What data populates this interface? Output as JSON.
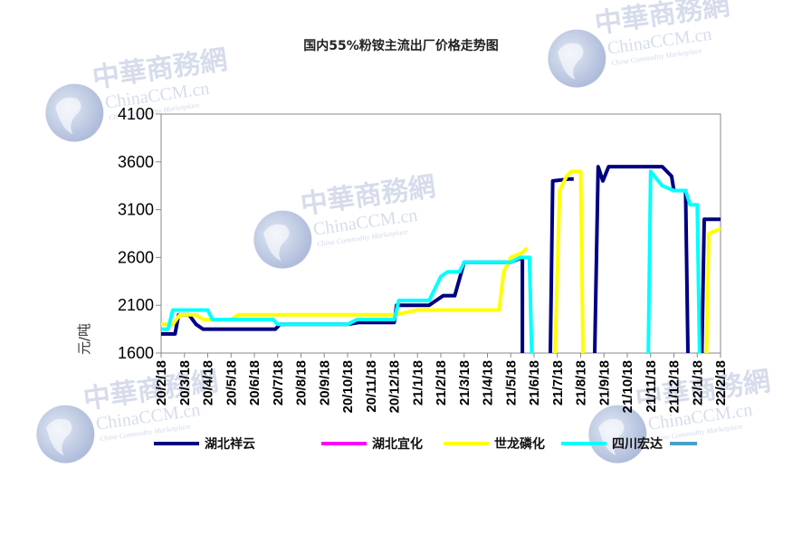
{
  "chart_data": {
    "type": "line",
    "title": "国内55%粉铵主流出厂价格走势图",
    "ylabel": "元/吨",
    "ylim": [
      1600,
      4100
    ],
    "yticks": [
      1600,
      2100,
      2600,
      3100,
      3600,
      4100
    ],
    "x_ticks": [
      "20/2/18",
      "20/3/18",
      "20/4/18",
      "20/5/18",
      "20/6/18",
      "20/7/18",
      "20/8/18",
      "20/9/18",
      "20/10/18",
      "20/11/18",
      "20/12/18",
      "21/1/18",
      "21/2/18",
      "21/3/18",
      "21/4/18",
      "21/5/18",
      "21/6/18",
      "21/7/18",
      "21/8/18",
      "21/9/18",
      "21/10/18",
      "21/11/18",
      "21/12/18",
      "22/1/18",
      "22/2/18"
    ],
    "x_unit": "month index (0 = 20/2/18, 24 = 22/2/18)",
    "grid": false,
    "legend_position": "bottom",
    "series": [
      {
        "name": "湖北祥云",
        "color": "#000080",
        "width": 4,
        "points": [
          [
            0,
            1800
          ],
          [
            0.6,
            1800
          ],
          [
            0.75,
            2000
          ],
          [
            1.2,
            2000
          ],
          [
            1.5,
            1900
          ],
          [
            1.8,
            1850
          ],
          [
            3,
            1850
          ],
          [
            4,
            1850
          ],
          [
            4.9,
            1850
          ],
          [
            5.1,
            1900
          ],
          [
            6,
            1900
          ],
          [
            7,
            1900
          ],
          [
            8,
            1900
          ],
          [
            8.5,
            1920
          ],
          [
            9,
            1920
          ],
          [
            10,
            1920
          ],
          [
            10.1,
            2100
          ],
          [
            11.5,
            2100
          ],
          [
            12.1,
            2200
          ],
          [
            12.6,
            2200
          ],
          [
            13,
            2550
          ],
          [
            14,
            2550
          ],
          [
            15,
            2550
          ],
          [
            15.5,
            2600
          ],
          [
            15.5,
            1600
          ],
          null,
          [
            16.7,
            1600
          ],
          [
            16.8,
            3400
          ],
          [
            17.5,
            3420
          ],
          [
            17.7,
            3420
          ],
          null,
          [
            18.6,
            1600
          ],
          [
            18.75,
            3550
          ],
          [
            18.95,
            3400
          ],
          [
            19.2,
            3550
          ],
          [
            20,
            3550
          ],
          [
            21,
            3550
          ],
          [
            21.5,
            3550
          ],
          [
            21.9,
            3450
          ],
          [
            22,
            3300
          ],
          [
            22.5,
            3300
          ],
          [
            22.6,
            1600
          ],
          null,
          [
            23.2,
            1600
          ],
          [
            23.3,
            3000
          ],
          [
            24,
            3000
          ],
          [
            24.4,
            3000
          ]
        ]
      },
      {
        "name": "湖北宜化",
        "color": "#ff00ff",
        "width": 3,
        "points": []
      },
      {
        "name": "世龙磷化",
        "color": "#ffff00",
        "width": 4,
        "points": [
          [
            0,
            1900
          ],
          [
            0.5,
            1900
          ],
          [
            0.8,
            2000
          ],
          [
            1.5,
            2000
          ],
          [
            1.8,
            1950
          ],
          [
            2,
            1950
          ],
          [
            3,
            1950
          ],
          [
            3.3,
            2000
          ],
          [
            5,
            2000
          ],
          [
            6,
            2000
          ],
          [
            7,
            2000
          ],
          [
            8,
            2000
          ],
          [
            9,
            2000
          ],
          [
            10,
            2000
          ],
          [
            11,
            2050
          ],
          [
            12,
            2050
          ],
          [
            13,
            2050
          ],
          [
            14,
            2050
          ],
          [
            14.5,
            2050
          ],
          [
            14.7,
            2450
          ],
          [
            15,
            2600
          ],
          [
            15.5,
            2650
          ],
          [
            15.7,
            2700
          ],
          null,
          [
            16.9,
            1600
          ],
          [
            17.1,
            3300
          ],
          [
            17.4,
            3450
          ],
          [
            17.6,
            3500
          ],
          [
            18,
            3500
          ],
          [
            18.1,
            1600
          ],
          null,
          [
            23.4,
            1600
          ],
          [
            23.5,
            2850
          ],
          [
            24,
            2900
          ],
          [
            24.3,
            2900
          ],
          [
            24.4,
            1600
          ]
        ]
      },
      {
        "name": "四川宏达",
        "color": "#00ffff",
        "width": 4,
        "points": [
          [
            0,
            1850
          ],
          [
            0.3,
            1850
          ],
          [
            0.5,
            2050
          ],
          [
            1,
            2050
          ],
          [
            2,
            2050
          ],
          [
            2.2,
            1950
          ],
          [
            3,
            1950
          ],
          [
            4,
            1950
          ],
          [
            4.8,
            1950
          ],
          [
            5,
            1900
          ],
          [
            6,
            1900
          ],
          [
            7,
            1900
          ],
          [
            8,
            1900
          ],
          [
            8.4,
            1950
          ],
          [
            9,
            1950
          ],
          [
            10,
            1950
          ],
          [
            10.2,
            2150
          ],
          [
            11,
            2150
          ],
          [
            11.5,
            2150
          ],
          [
            11.8,
            2300
          ],
          [
            12,
            2400
          ],
          [
            12.3,
            2450
          ],
          [
            12.8,
            2450
          ],
          [
            13,
            2550
          ],
          [
            14,
            2550
          ],
          [
            15,
            2550
          ],
          [
            15.4,
            2600
          ],
          [
            15.8,
            2600
          ],
          [
            15.9,
            1600
          ],
          null,
          [
            20.9,
            1600
          ],
          [
            21,
            3500
          ],
          [
            21.5,
            3350
          ],
          [
            22,
            3300
          ],
          [
            22.5,
            3300
          ],
          [
            22.7,
            3150
          ],
          [
            23,
            3150
          ],
          [
            23.1,
            1600
          ]
        ]
      }
    ]
  },
  "watermark": {
    "cn": "中華商務網",
    "en": "ChinaCCM.cn",
    "sub": "China Commodity Marketplace"
  }
}
